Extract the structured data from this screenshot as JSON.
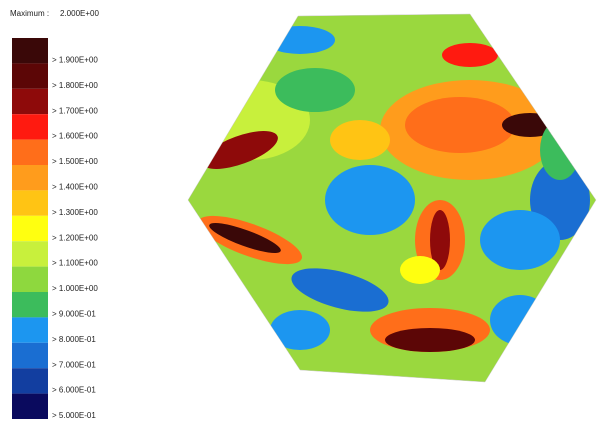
{
  "header": {
    "label": "Maximum :",
    "value": "2.000E+00"
  },
  "legend": [
    {
      "label": "> 1.900E+00",
      "color": "#3a0808"
    },
    {
      "label": "> 1.800E+00",
      "color": "#5c0606"
    },
    {
      "label": "> 1.700E+00",
      "color": "#8e0a0a"
    },
    {
      "label": "> 1.600E+00",
      "color": "#ff1a10"
    },
    {
      "label": "> 1.500E+00",
      "color": "#ff6e1a"
    },
    {
      "label": "> 1.400E+00",
      "color": "#ff9c1c"
    },
    {
      "label": "> 1.300E+00",
      "color": "#ffc414"
    },
    {
      "label": "> 1.200E+00",
      "color": "#ffff10"
    },
    {
      "label": "> 1.100E+00",
      "color": "#c8f03c"
    },
    {
      "label": "> 1.000E+00",
      "color": "#8ed83e"
    },
    {
      "label": "> 9.000E-01",
      "color": "#3cbc5c"
    },
    {
      "label": "> 8.000E-01",
      "color": "#1c96f0"
    },
    {
      "label": "> 7.000E-01",
      "color": "#1a6ed2"
    },
    {
      "label": "> 6.000E-01",
      "color": "#123ea0"
    },
    {
      "label": "> 5.000E-01",
      "color": "#0a0a5e"
    }
  ]
}
